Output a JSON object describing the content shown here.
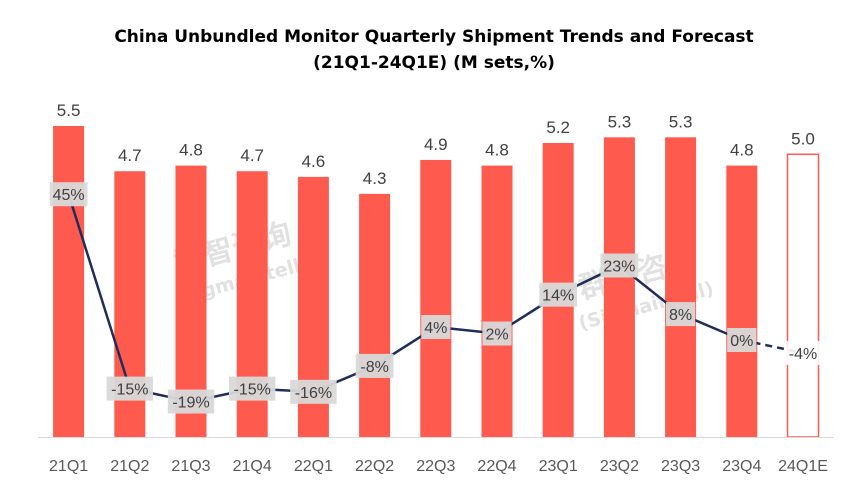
{
  "chart_data": {
    "type": "bar",
    "title": "China Unbundled Monitor Quarterly Shipment Trends and Forecast",
    "subtitle": "(21Q1-24Q1E) (M sets,%)",
    "categories": [
      "21Q1",
      "21Q2",
      "21Q3",
      "21Q4",
      "22Q1",
      "22Q2",
      "22Q3",
      "22Q4",
      "23Q1",
      "23Q2",
      "23Q3",
      "23Q4",
      "24Q1E"
    ],
    "series": [
      {
        "type": "bar",
        "values": [
          5.5,
          4.7,
          4.8,
          4.7,
          4.6,
          4.3,
          4.9,
          4.8,
          5.2,
          5.3,
          5.3,
          4.8,
          5.0
        ],
        "value_labels": [
          "5.5",
          "4.7",
          "4.8",
          "4.7",
          "4.6",
          "4.3",
          "4.9",
          "4.8",
          "5.2",
          "5.3",
          "5.3",
          "4.8",
          "5.0"
        ],
        "forecast_from_index": 12,
        "color": "#ff5a4e"
      },
      {
        "type": "line",
        "values": [
          45,
          -15,
          -19,
          -15,
          -16,
          -8,
          4,
          2,
          14,
          23,
          8,
          0,
          -4
        ],
        "value_labels": [
          "45%",
          "-15%",
          "-19%",
          "-15%",
          "-16%",
          "-8%",
          "4%",
          "2%",
          "14%",
          "23%",
          "8%",
          "0%",
          "-4%"
        ],
        "forecast_from_index": 11,
        "color": "#1f2d5a"
      }
    ],
    "ylim": [
      0,
      5.5
    ],
    "secondary_ylim": [
      -25,
      50
    ],
    "grid": false,
    "legend": "none",
    "watermark": {
      "line1": "群智咨询",
      "line2": "(Sigmaintell)"
    }
  }
}
